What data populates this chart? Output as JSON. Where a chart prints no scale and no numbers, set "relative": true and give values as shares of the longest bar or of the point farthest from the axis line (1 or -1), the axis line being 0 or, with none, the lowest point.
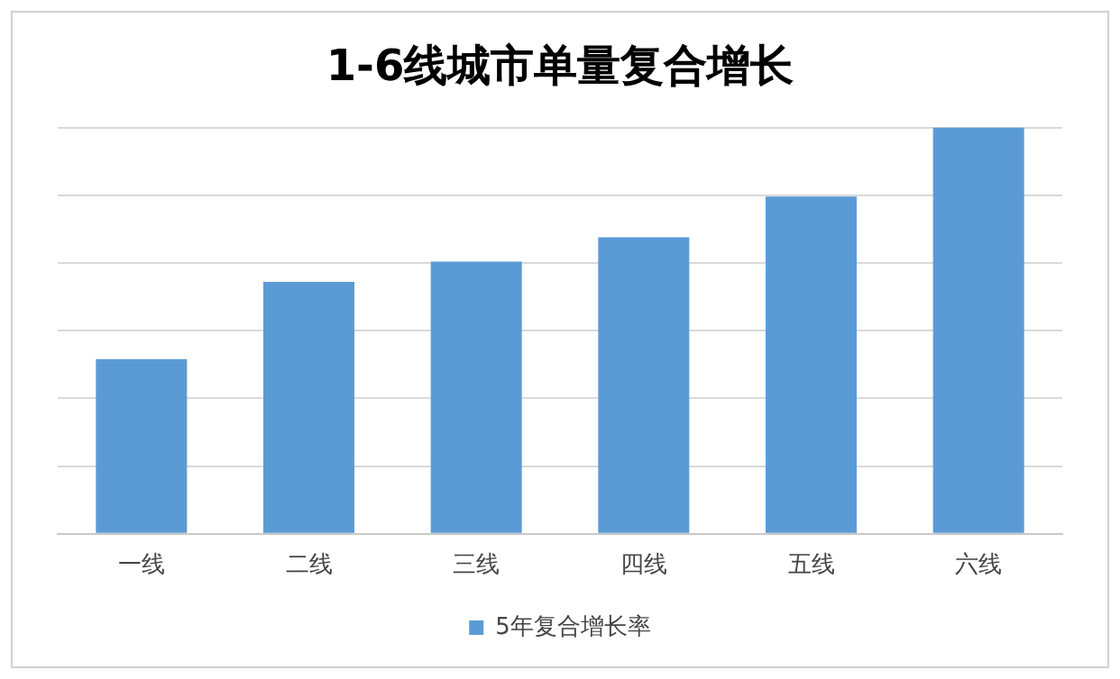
{
  "chart_data": {
    "type": "bar",
    "title": "1-6线城市单量复合增长",
    "categories": [
      "一线",
      "二线",
      "三线",
      "四线",
      "五线",
      "六线"
    ],
    "series": [
      {
        "name": "5年复合增长率",
        "color": "#5b9bd5",
        "values": [
          0.43,
          0.62,
          0.67,
          0.73,
          0.83,
          1
        ]
      }
    ],
    "relative": true,
    "grid": "y",
    "legend": "bottom"
  }
}
